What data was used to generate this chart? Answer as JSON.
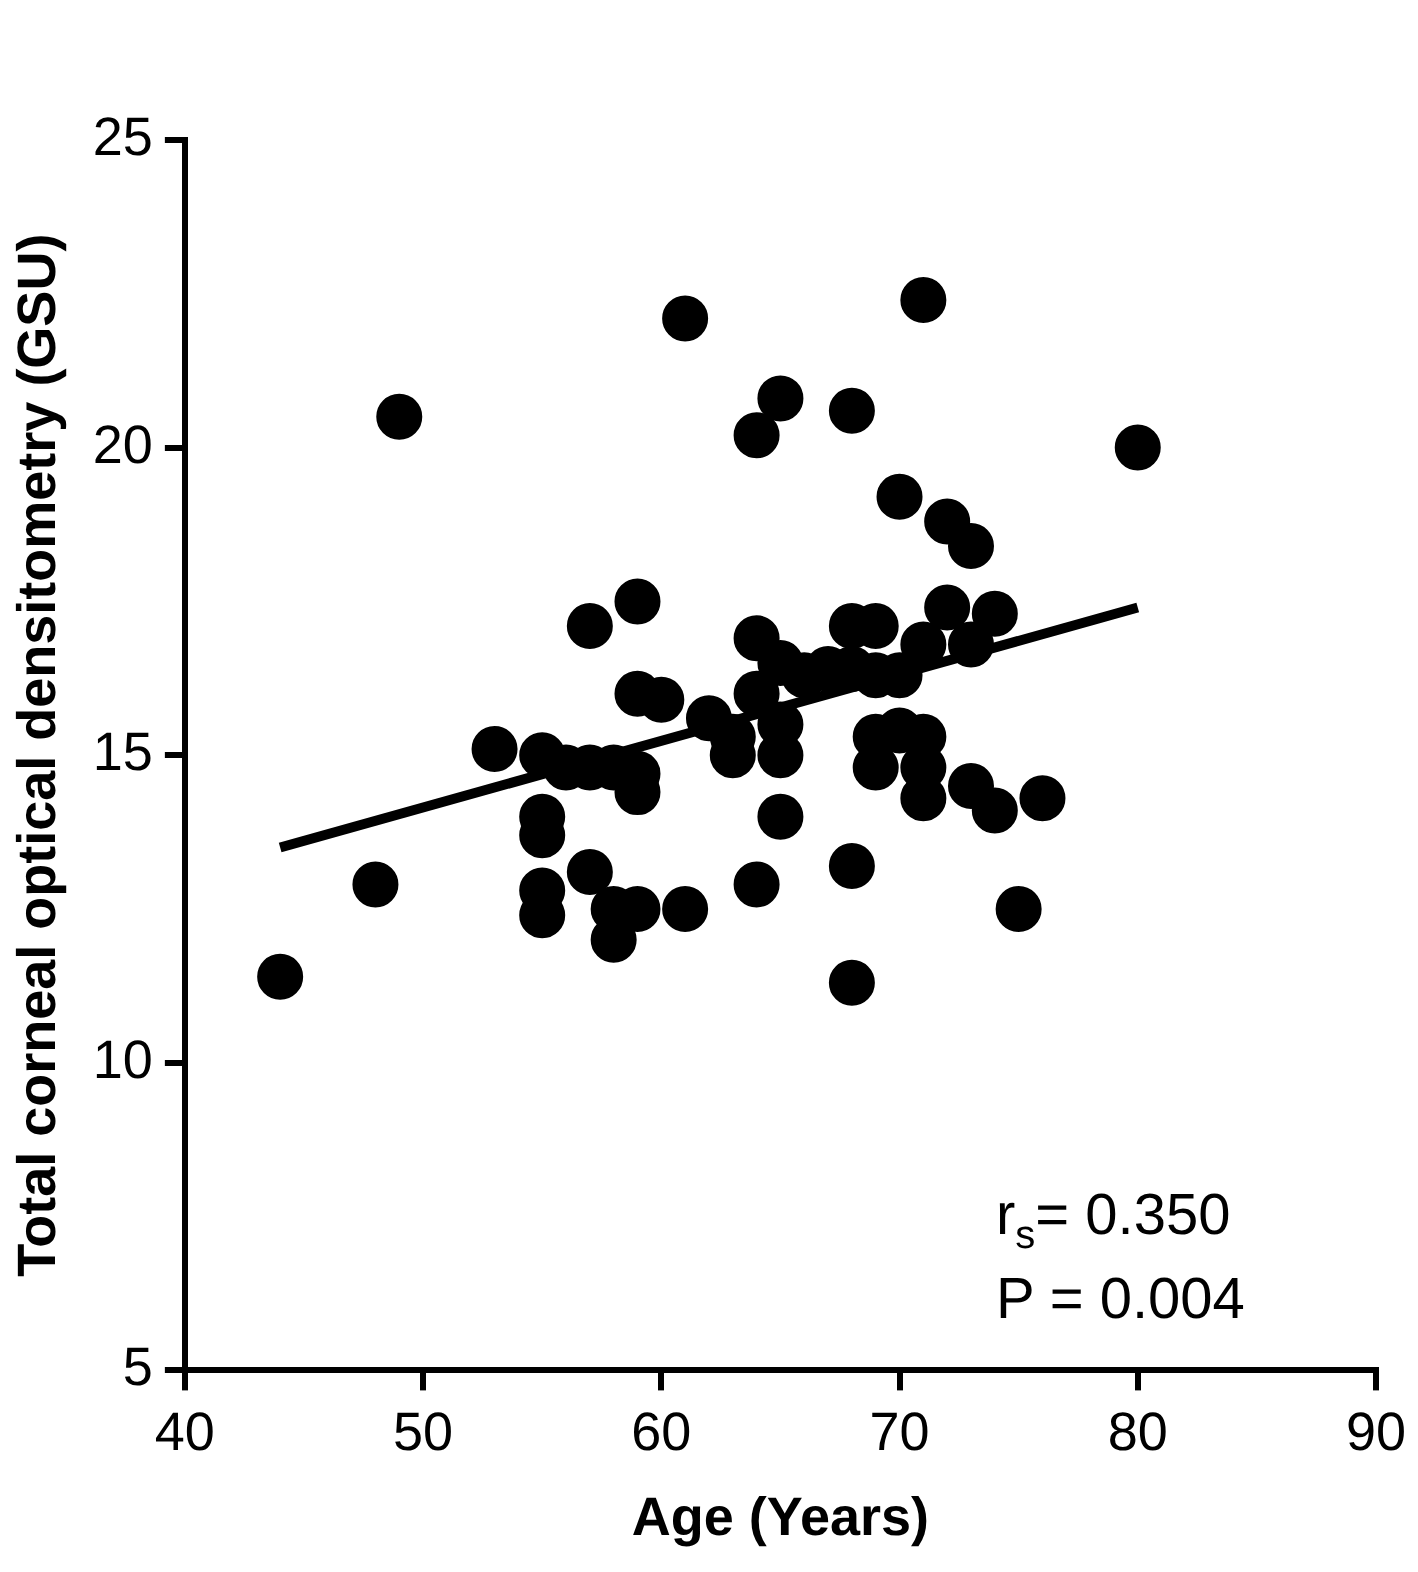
{
  "chart_data": {
    "type": "scatter",
    "xlabel": "Age (Years)",
    "ylabel": "Total corneal optical densitometry (GSU)",
    "xlim": [
      40,
      90
    ],
    "xticks": [
      40,
      50,
      60,
      70,
      80,
      90
    ],
    "ylim": [
      5,
      25
    ],
    "yticks": [
      5,
      10,
      15,
      20,
      25
    ],
    "grid": false,
    "legend": false,
    "marker": "circle",
    "annotations": [
      "r$_{s}$= 0.350",
      "P = 0.004"
    ],
    "series": [
      {
        "type": "scatter",
        "color": "#000000",
        "x": [
          44,
          48,
          49,
          53,
          55,
          55,
          55,
          55,
          55,
          56,
          57,
          57,
          57,
          58,
          58,
          58,
          59,
          59,
          59,
          59,
          59,
          60,
          61,
          61,
          62,
          63,
          63,
          64,
          64,
          64,
          64,
          65,
          65,
          65,
          65,
          65,
          66,
          67,
          68,
          68,
          68,
          68,
          68,
          69,
          69,
          69,
          69,
          70,
          70,
          70,
          71,
          71,
          71,
          71,
          71,
          72,
          72,
          73,
          73,
          73,
          74,
          74,
          75,
          76,
          80
        ],
        "values": [
          11.4,
          12.9,
          20.5,
          15.1,
          15.0,
          14.0,
          13.7,
          12.8,
          12.4,
          14.8,
          14.8,
          17.1,
          13.1,
          14.8,
          12.5,
          12.0,
          17.5,
          16.0,
          14.7,
          14.4,
          12.5,
          15.9,
          22.1,
          12.5,
          15.6,
          15.3,
          15.0,
          20.2,
          16.9,
          16.0,
          12.9,
          20.8,
          16.5,
          15.5,
          15.0,
          14.0,
          16.3,
          16.4,
          20.6,
          17.1,
          16.4,
          13.2,
          11.3,
          17.1,
          16.3,
          15.3,
          14.8,
          19.2,
          16.3,
          15.4,
          22.4,
          16.8,
          15.3,
          14.8,
          14.3,
          18.8,
          17.4,
          18.4,
          16.8,
          14.5,
          17.3,
          14.1,
          12.5,
          14.3,
          20.0
        ]
      },
      {
        "type": "line",
        "color": "#000000",
        "x": [
          44,
          80
        ],
        "values": [
          13.5,
          17.4
        ],
        "marker": "none"
      }
    ]
  }
}
